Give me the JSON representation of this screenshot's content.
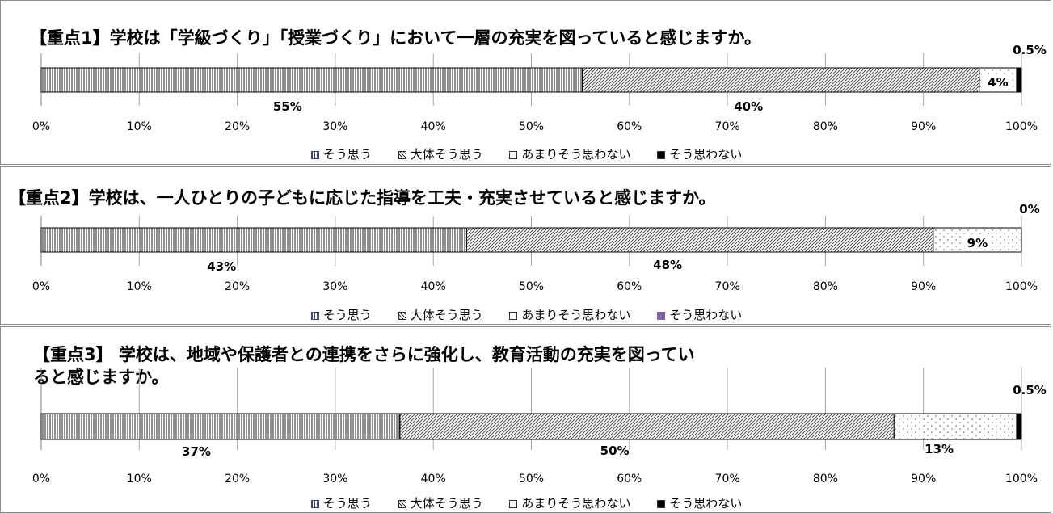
{
  "chart_data": [
    {
      "type": "bar",
      "orientation": "horizontal",
      "stacked": true,
      "title": "【重点1】学校は「学級づくり」「授業づくり」において一層の充実を図っていると感じますか。",
      "xlim": [
        0,
        100
      ],
      "x_tick_labels": [
        "0%",
        "10%",
        "20%",
        "30%",
        "40%",
        "50%",
        "60%",
        "70%",
        "80%",
        "90%",
        "100%"
      ],
      "grid": true,
      "legend_position": "bottom",
      "series": [
        {
          "name": "そう思う",
          "value": 55.2,
          "label": "55%"
        },
        {
          "name": "大体そう思う",
          "value": 40.5,
          "label": "40%"
        },
        {
          "name": "あまりそう思わない",
          "value": 3.8,
          "label": "4%"
        },
        {
          "name": "そう思わない",
          "value": 0.5,
          "label": "0.5%"
        }
      ]
    },
    {
      "type": "bar",
      "orientation": "horizontal",
      "stacked": true,
      "title": "【重点2】学校は、一人ひとりの子どもに応じた指導を工夫・充実させていると感じますか。",
      "xlim": [
        0,
        100
      ],
      "x_tick_labels": [
        "0%",
        "10%",
        "20%",
        "30%",
        "40%",
        "50%",
        "60%",
        "70%",
        "80%",
        "90%",
        "100%"
      ],
      "grid": true,
      "legend_position": "bottom",
      "series": [
        {
          "name": "そう思う",
          "value": 43.4,
          "label": "43%"
        },
        {
          "name": "大体そう思う",
          "value": 47.6,
          "label": "48%"
        },
        {
          "name": "あまりそう思わない",
          "value": 9.0,
          "label": "9%"
        },
        {
          "name": "そう思わない",
          "value": 0,
          "label": "0%"
        }
      ]
    },
    {
      "type": "bar",
      "orientation": "horizontal",
      "stacked": true,
      "title": "【重点3】 学校は、地域や保護者との連携をさらに強化し、教育活動の充実を図っていると感じますか。",
      "title_lines": [
        "【重点3】 学校は、地域や保護者との連携をさらに強化し、教育活動の充実を図ってい",
        "ると感じますか。"
      ],
      "xlim": [
        0,
        100
      ],
      "x_tick_labels": [
        "0%",
        "10%",
        "20%",
        "30%",
        "40%",
        "50%",
        "60%",
        "70%",
        "80%",
        "90%",
        "100%"
      ],
      "grid": true,
      "legend_position": "bottom",
      "series": [
        {
          "name": "そう思う",
          "value": 36.6,
          "label": "37%"
        },
        {
          "name": "大体そう思う",
          "value": 50.4,
          "label": "50%"
        },
        {
          "name": "あまりそう思わない",
          "value": 12.5,
          "label": "13%"
        },
        {
          "name": "そう思わない",
          "value": 0.5,
          "label": "0.5%"
        }
      ]
    }
  ],
  "legend_markers": [
    [
      "Ⅲ",
      "▨",
      "□",
      "■"
    ],
    [
      "Ⅲ",
      "▨",
      "□",
      "■"
    ],
    [
      "Ⅲ",
      "▨",
      "□",
      "■"
    ]
  ],
  "colors": {
    "bar_outline": "#000000",
    "gridline": "#a6a6a6",
    "panel_border": "#8c8c8c",
    "agree_legend_swatch": "#3f4a8c",
    "strongly_disagree_fill": "#000000",
    "strongly_disagree_legend_panel2": "#8064a2"
  }
}
